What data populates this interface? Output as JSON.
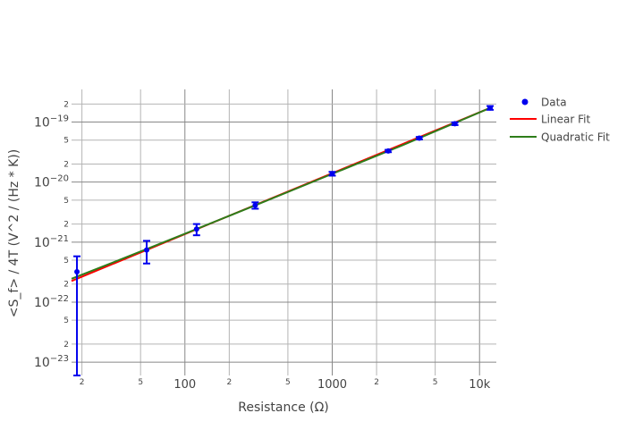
{
  "chart_data": {
    "type": "scatter",
    "title": "",
    "xlabel": "Resistance (Ω)",
    "ylabel": "<S_f> / 4T (V^2 / (Hz * K))",
    "x_scale": "log",
    "y_scale": "log",
    "xlim": [
      17,
      13000
    ],
    "ylim": [
      6e-24,
      3.5e-19
    ],
    "grid": true,
    "legend_position": "top-right",
    "x_major_ticks": [
      {
        "value": 100,
        "label": "100"
      },
      {
        "value": 1000,
        "label": "1000"
      },
      {
        "value": 10000,
        "label": "10k"
      }
    ],
    "x_minor_ticks": [
      {
        "value": 20,
        "label": "2"
      },
      {
        "value": 50,
        "label": "5"
      },
      {
        "value": 200,
        "label": "2"
      },
      {
        "value": 500,
        "label": "5"
      },
      {
        "value": 2000,
        "label": "2"
      },
      {
        "value": 5000,
        "label": "5"
      }
    ],
    "y_major_ticks": [
      {
        "value": 1e-23,
        "mantissa": "10",
        "exponent": "−23"
      },
      {
        "value": 1e-22,
        "mantissa": "10",
        "exponent": "−22"
      },
      {
        "value": 1e-21,
        "mantissa": "10",
        "exponent": "−21"
      },
      {
        "value": 1e-20,
        "mantissa": "10",
        "exponent": "−20"
      },
      {
        "value": 1e-19,
        "mantissa": "10",
        "exponent": "−19"
      }
    ],
    "y_minor_ticks": [
      {
        "value": 2e-23,
        "label": "2"
      },
      {
        "value": 5e-23,
        "label": "5"
      },
      {
        "value": 2e-22,
        "label": "2"
      },
      {
        "value": 5e-22,
        "label": "5"
      },
      {
        "value": 2e-21,
        "label": "2"
      },
      {
        "value": 5e-21,
        "label": "5"
      },
      {
        "value": 2e-20,
        "label": "2"
      },
      {
        "value": 5e-20,
        "label": "5"
      },
      {
        "value": 2e-19,
        "label": "2"
      }
    ],
    "data_series": {
      "name": "Data",
      "color": "#0000ee",
      "points": [
        {
          "x": 18.5,
          "y": 3.2e-22,
          "y_low": 6e-24,
          "y_high": 5.8e-22
        },
        {
          "x": 55,
          "y": 7.4e-22,
          "y_low": 4.4e-22,
          "y_high": 1.05e-21
        },
        {
          "x": 120,
          "y": 1.65e-21,
          "y_low": 1.3e-21,
          "y_high": 2e-21
        },
        {
          "x": 300,
          "y": 4.1e-21,
          "y_low": 3.6e-21,
          "y_high": 4.6e-21
        },
        {
          "x": 1000,
          "y": 1.38e-20,
          "y_low": 1.28e-20,
          "y_high": 1.48e-20
        },
        {
          "x": 2400,
          "y": 3.3e-20,
          "y_low": 3.15e-20,
          "y_high": 3.45e-20
        },
        {
          "x": 3900,
          "y": 5.4e-20,
          "y_low": 5.15e-20,
          "y_high": 5.65e-20
        },
        {
          "x": 6800,
          "y": 9.4e-20,
          "y_low": 8.9e-20,
          "y_high": 9.9e-20
        },
        {
          "x": 11800,
          "y": 1.72e-19,
          "y_low": 1.6e-19,
          "y_high": 1.85e-19
        }
      ]
    },
    "fit_series": [
      {
        "name": "Linear Fit",
        "color": "#ff0000",
        "x": [
          17,
          11800
        ],
        "y": [
          2.25e-22,
          1.72e-19
        ]
      },
      {
        "name": "Quadratic Fit",
        "color": "#2e7d1a",
        "x": [
          17,
          40,
          100,
          300,
          1000,
          3000,
          11800
        ],
        "y": [
          2.45e-22,
          5.6e-22,
          1.38e-21,
          4.1e-21,
          1.37e-20,
          4.1e-20,
          1.72e-19
        ]
      }
    ]
  }
}
